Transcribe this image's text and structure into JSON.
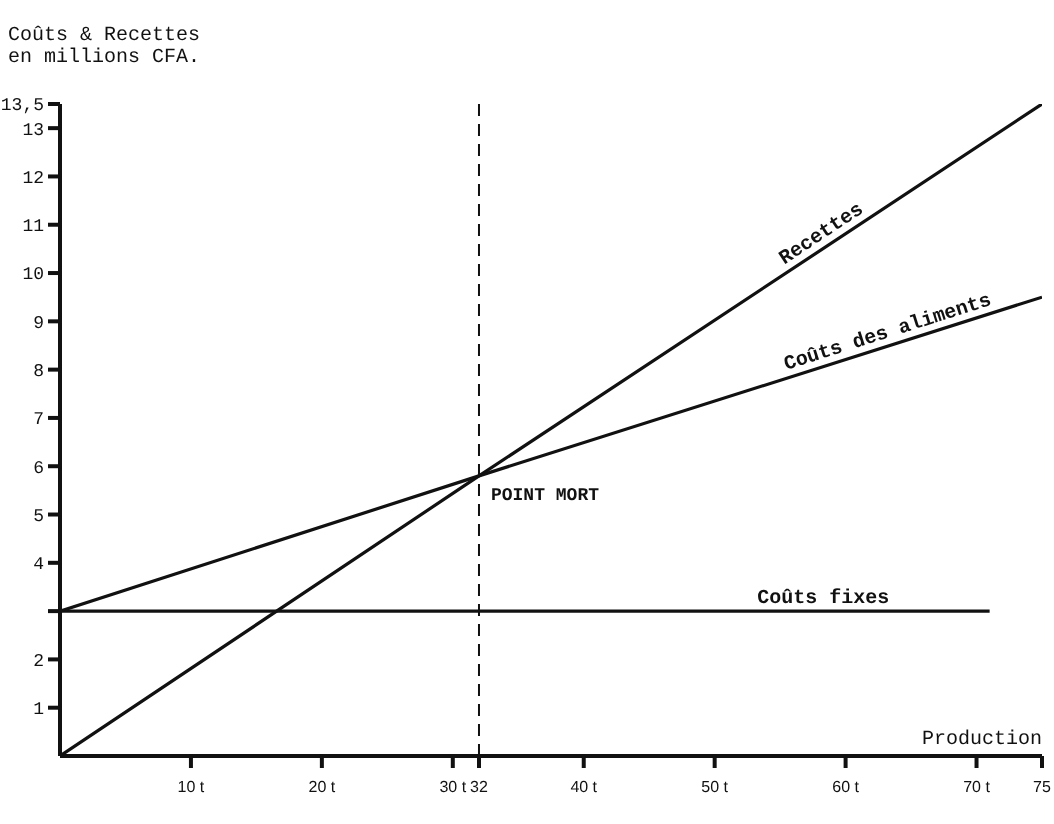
{
  "chart_data": {
    "type": "line",
    "ylabel": "Coûts & Recettes\nen millions CFA.",
    "xlabel": "Production",
    "xlim": [
      0,
      75
    ],
    "ylim": [
      0,
      13.5
    ],
    "xticks": [
      {
        "value": 10,
        "label": "10 t"
      },
      {
        "value": 20,
        "label": "20 t"
      },
      {
        "value": 30,
        "label": "30 t"
      },
      32,
      {
        "value": 40,
        "label": "40 t"
      },
      {
        "value": 50,
        "label": "50 t"
      },
      {
        "value": 60,
        "label": "60 t"
      },
      {
        "value": 70,
        "label": "70 t"
      },
      75
    ],
    "yticks": [
      1,
      2,
      {
        "value": 3,
        "label": null
      },
      4,
      5,
      6,
      7,
      8,
      9,
      10,
      11,
      12,
      13,
      {
        "value": 13.5,
        "label": "13,5"
      }
    ],
    "series": [
      {
        "name": "Recettes",
        "color": "#111111",
        "x": [
          0,
          32,
          75
        ],
        "values": [
          0,
          5.8,
          13.5
        ]
      },
      {
        "name": "Coûts des aliments",
        "color": "#111111",
        "x": [
          0,
          32,
          75
        ],
        "values": [
          3,
          5.8,
          9.5
        ]
      },
      {
        "name": "Coûts fixes",
        "color": "#111111",
        "x": [
          0,
          71
        ],
        "values": [
          3,
          3
        ]
      }
    ],
    "ref_lines": [
      {
        "axis": "x",
        "value": 32,
        "line_style": "dashed",
        "color": "#111111"
      }
    ],
    "annotations": [
      {
        "text": "POINT MORT",
        "x": 32,
        "y": 5.8
      }
    ],
    "marker": "none",
    "line_style": "solid"
  }
}
